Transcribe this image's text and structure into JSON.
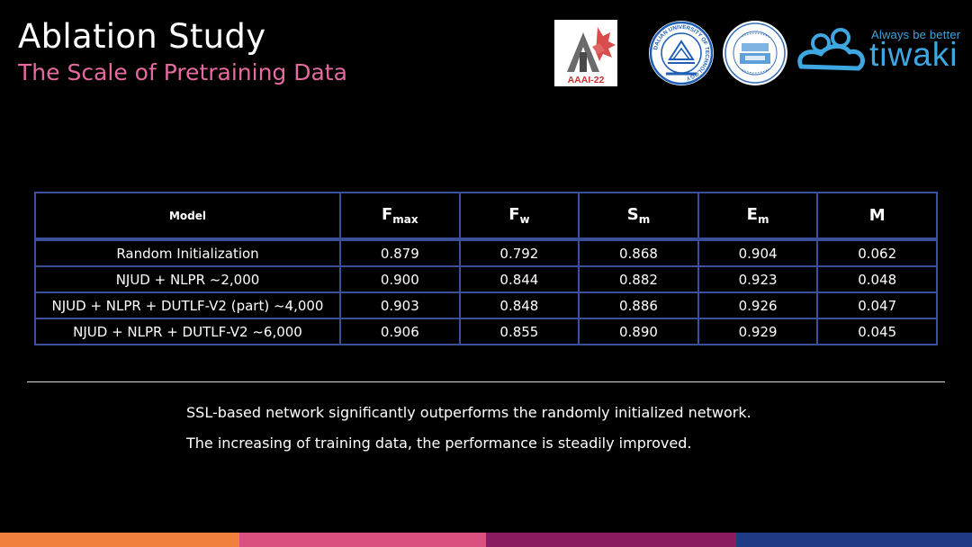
{
  "title": "Ablation Study",
  "subtitle": "The Scale of Pretraining Data",
  "logos": {
    "conference": "AAAI-22",
    "university_ring_text": "DALIAN UNIVERSITY OF TECHNOLOGY",
    "tiwaki_slogan": "Always be better",
    "tiwaki_name": "tiwaki"
  },
  "table": {
    "headers": [
      {
        "main": "Model",
        "sub": ""
      },
      {
        "main": "F",
        "sub": "max"
      },
      {
        "main": "F",
        "sub": "w"
      },
      {
        "main": "S",
        "sub": "m"
      },
      {
        "main": "E",
        "sub": "m"
      },
      {
        "main": "M",
        "sub": ""
      }
    ],
    "rows": [
      [
        "Random Initialization",
        "0.879",
        "0.792",
        "0.868",
        "0.904",
        "0.062"
      ],
      [
        "NJUD + NLPR ~2,000",
        "0.900",
        "0.844",
        "0.882",
        "0.923",
        "0.048"
      ],
      [
        "NJUD + NLPR + DUTLF-V2 (part) ~4,000",
        "0.903",
        "0.848",
        "0.886",
        "0.926",
        "0.047"
      ],
      [
        "NJUD + NLPR + DUTLF-V2 ~6,000",
        "0.906",
        "0.855",
        "0.890",
        "0.929",
        "0.045"
      ]
    ]
  },
  "notes": [
    "SSL-based network significantly outperforms the randomly initialized network.",
    "The increasing of training data, the performance is steadily improved."
  ],
  "colors": {
    "subtitle": "#e46aa0",
    "table_border": "#3b4f9d",
    "logo_blue": "#3ea6e0",
    "bar_segments": [
      "#f0803c",
      "#d9507f",
      "#8a1b5e",
      "#1f3b86"
    ]
  }
}
